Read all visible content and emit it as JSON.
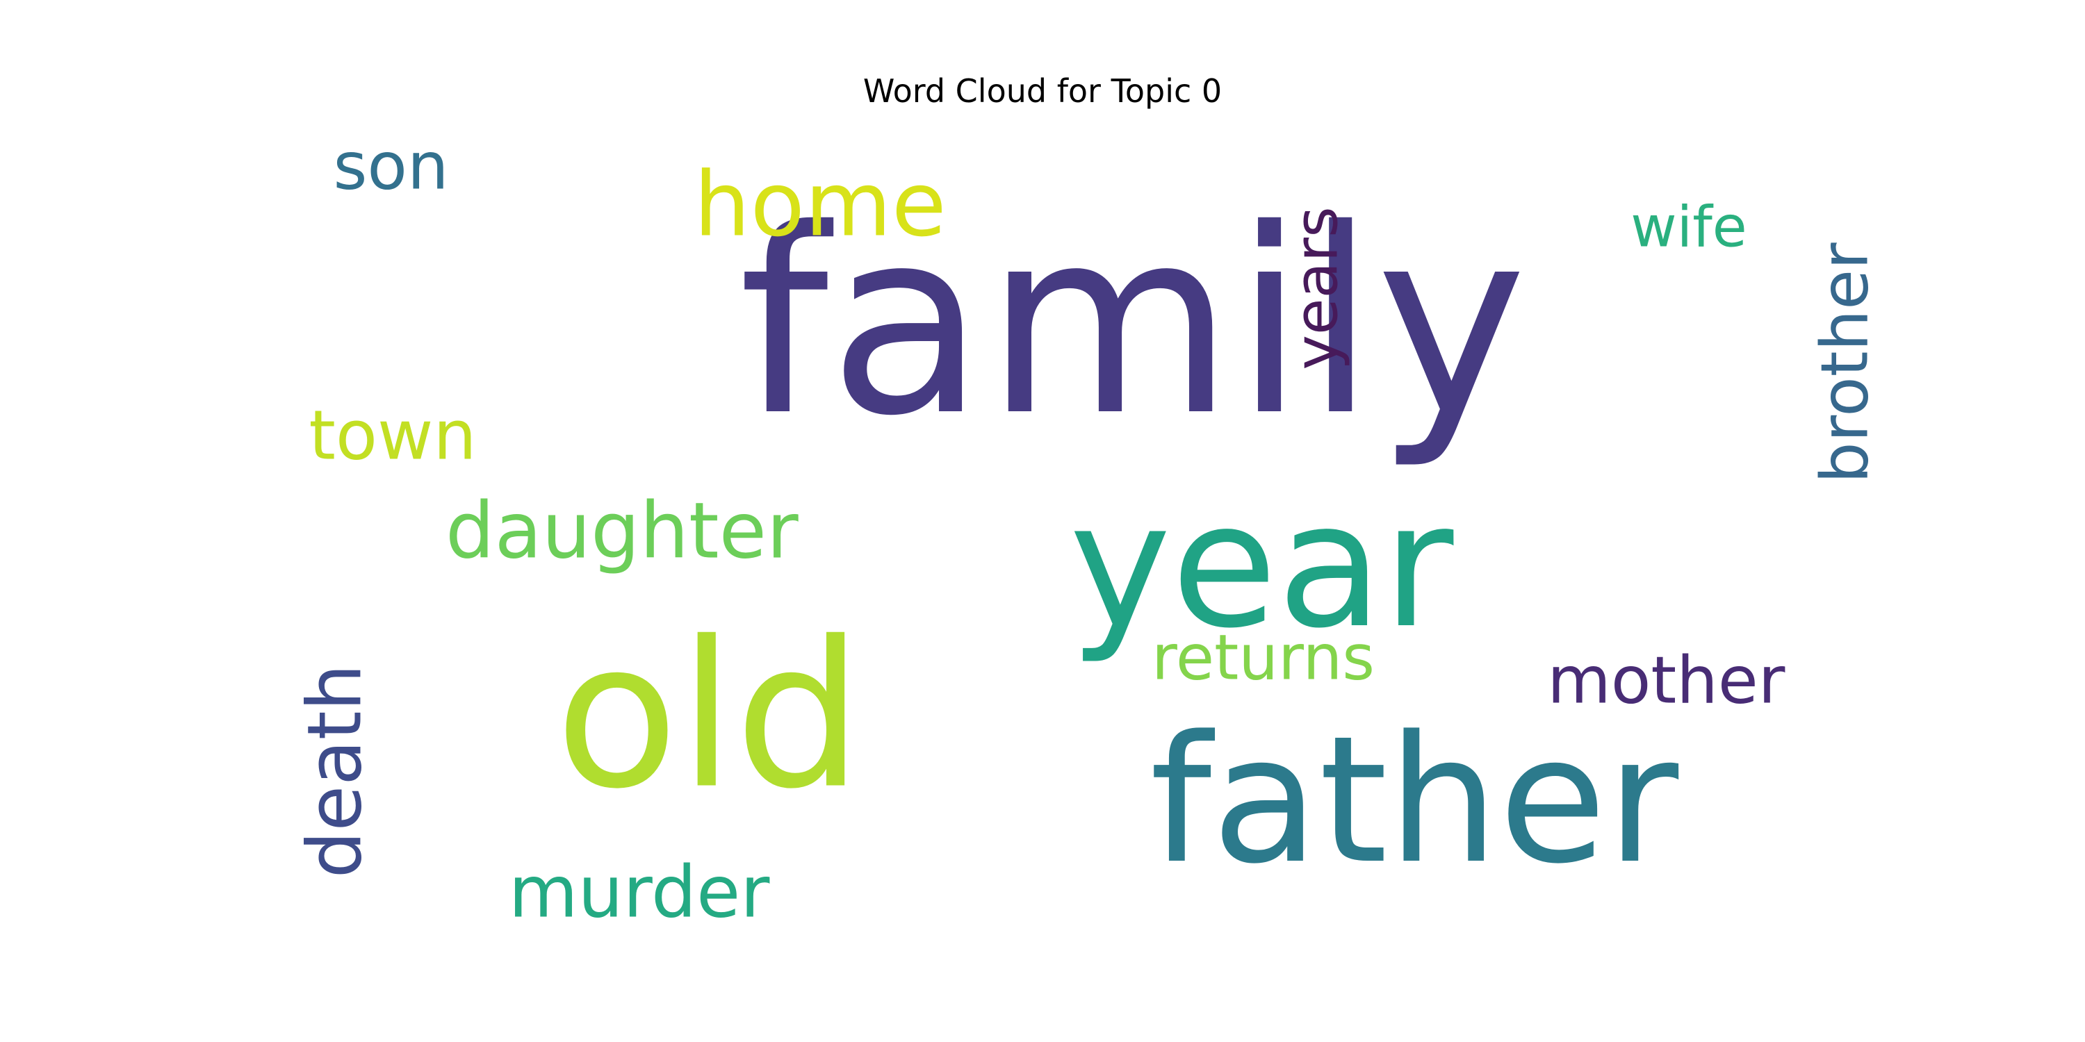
{
  "title": "Word Cloud for Topic 0",
  "background_color": "#ffffff",
  "words": [
    {
      "text": "family",
      "color": "#463b82",
      "rotated": false
    },
    {
      "text": "year",
      "color": "#20a385",
      "rotated": false
    },
    {
      "text": "old",
      "color": "#b0dd2f",
      "rotated": false
    },
    {
      "text": "father",
      "color": "#2c7a8c",
      "rotated": false
    },
    {
      "text": "home",
      "color": "#d8e219",
      "rotated": false
    },
    {
      "text": "son",
      "color": "#33718e",
      "rotated": false
    },
    {
      "text": "years",
      "color": "#471a5a",
      "rotated": true
    },
    {
      "text": "wife",
      "color": "#2ab07f",
      "rotated": false
    },
    {
      "text": "brother",
      "color": "#37688d",
      "rotated": true
    },
    {
      "text": "town",
      "color": "#c2df23",
      "rotated": false
    },
    {
      "text": "daughter",
      "color": "#6cce59",
      "rotated": false
    },
    {
      "text": "returns",
      "color": "#84d44b",
      "rotated": false
    },
    {
      "text": "mother",
      "color": "#482c75",
      "rotated": false
    },
    {
      "text": "death",
      "color": "#3e4c8a",
      "rotated": true
    },
    {
      "text": "murder",
      "color": "#24aa83",
      "rotated": false
    }
  ]
}
